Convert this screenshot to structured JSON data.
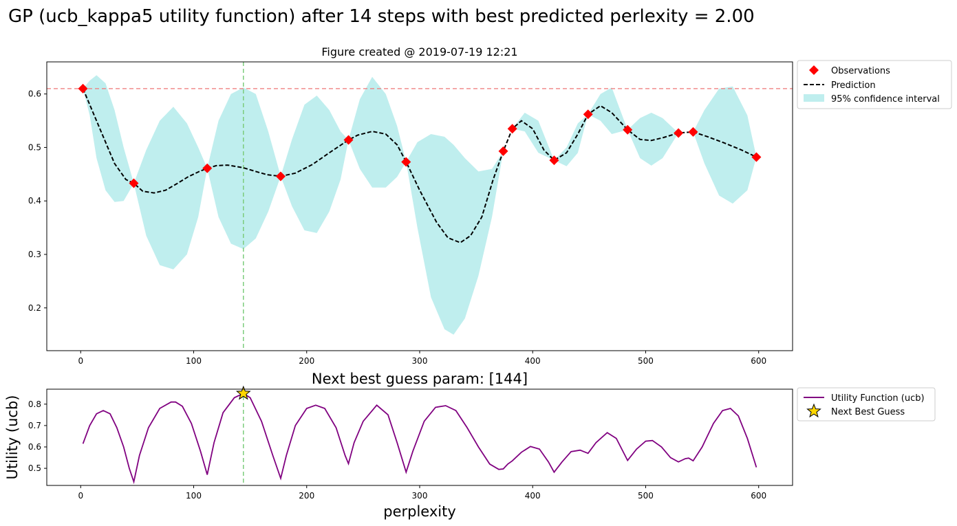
{
  "figure": {
    "suptitle": "GP (ucb_kappa5 utility function) after 14 steps with best predicted perlexity = 2.00"
  },
  "chart_data": [
    {
      "type": "line",
      "title": "Figure created @ 2019-07-19 12:21",
      "xlabel": "",
      "ylabel": "",
      "xlim": [
        -30,
        630
      ],
      "ylim": [
        0.12,
        0.66
      ],
      "xticks": [
        0,
        100,
        200,
        300,
        400,
        500,
        600
      ],
      "yticks": [
        0.2,
        0.3,
        0.4,
        0.5,
        0.6
      ],
      "grid": false,
      "legend_position": "outside-top-right",
      "best_value_line": 0.61,
      "next_guess_x": 144,
      "observations": {
        "name": "Observations",
        "marker": "diamond",
        "color": "#ff0000",
        "x": [
          2,
          47,
          112,
          177,
          237,
          288,
          374,
          382,
          419,
          449,
          484,
          529,
          542,
          598
        ],
        "y": [
          0.61,
          0.433,
          0.461,
          0.446,
          0.514,
          0.473,
          0.493,
          0.535,
          0.476,
          0.562,
          0.533,
          0.527,
          0.529,
          0.482
        ]
      },
      "prediction": {
        "name": "Prediction",
        "color": "#000000",
        "style": "dashed",
        "x": [
          2,
          10,
          20,
          30,
          40,
          47,
          55,
          65,
          75,
          85,
          95,
          105,
          112,
          120,
          130,
          144,
          155,
          165,
          177,
          190,
          205,
          220,
          237,
          245,
          258,
          270,
          280,
          288,
          300,
          315,
          325,
          336,
          345,
          355,
          365,
          374,
          382,
          390,
          400,
          410,
          419,
          430,
          440,
          449,
          460,
          470,
          484,
          495,
          505,
          515,
          529,
          542,
          555,
          570,
          585,
          598
        ],
        "y": [
          0.61,
          0.57,
          0.52,
          0.47,
          0.44,
          0.433,
          0.418,
          0.415,
          0.42,
          0.432,
          0.445,
          0.455,
          0.461,
          0.466,
          0.467,
          0.462,
          0.455,
          0.449,
          0.446,
          0.452,
          0.468,
          0.49,
          0.514,
          0.523,
          0.53,
          0.525,
          0.505,
          0.473,
          0.42,
          0.36,
          0.331,
          0.322,
          0.335,
          0.37,
          0.44,
          0.493,
          0.535,
          0.55,
          0.535,
          0.495,
          0.476,
          0.49,
          0.525,
          0.562,
          0.578,
          0.565,
          0.533,
          0.515,
          0.513,
          0.518,
          0.527,
          0.529,
          0.52,
          0.508,
          0.495,
          0.482
        ]
      },
      "confidence_interval": {
        "name": "95% confidence interval",
        "color": "#bfeeee",
        "x": [
          2,
          8,
          14,
          22,
          30,
          38,
          47,
          58,
          70,
          82,
          94,
          104,
          112,
          122,
          133,
          144,
          155,
          166,
          177,
          187,
          198,
          209,
          220,
          230,
          237,
          247,
          258,
          270,
          280,
          288,
          298,
          310,
          322,
          330,
          340,
          352,
          364,
          374,
          382,
          393,
          405,
          419,
          430,
          440,
          449,
          460,
          470,
          484,
          495,
          505,
          515,
          529,
          542,
          552,
          565,
          577,
          590,
          598
        ],
        "upper": [
          0.61,
          0.625,
          0.635,
          0.62,
          0.57,
          0.5,
          0.433,
          0.495,
          0.55,
          0.576,
          0.545,
          0.5,
          0.461,
          0.55,
          0.6,
          0.612,
          0.6,
          0.53,
          0.446,
          0.515,
          0.58,
          0.597,
          0.57,
          0.53,
          0.514,
          0.59,
          0.632,
          0.6,
          0.54,
          0.473,
          0.51,
          0.525,
          0.52,
          0.505,
          0.48,
          0.455,
          0.46,
          0.493,
          0.535,
          0.565,
          0.55,
          0.476,
          0.5,
          0.545,
          0.562,
          0.6,
          0.612,
          0.533,
          0.555,
          0.565,
          0.555,
          0.527,
          0.529,
          0.57,
          0.61,
          0.614,
          0.56,
          0.482
        ],
        "lower": [
          0.61,
          0.56,
          0.48,
          0.42,
          0.398,
          0.4,
          0.433,
          0.335,
          0.28,
          0.272,
          0.3,
          0.37,
          0.461,
          0.37,
          0.32,
          0.31,
          0.33,
          0.38,
          0.446,
          0.39,
          0.345,
          0.34,
          0.38,
          0.44,
          0.514,
          0.46,
          0.425,
          0.425,
          0.445,
          0.473,
          0.35,
          0.22,
          0.16,
          0.15,
          0.18,
          0.26,
          0.37,
          0.493,
          0.535,
          0.53,
          0.49,
          0.476,
          0.465,
          0.49,
          0.562,
          0.55,
          0.525,
          0.533,
          0.48,
          0.466,
          0.48,
          0.527,
          0.529,
          0.47,
          0.41,
          0.395,
          0.42,
          0.482
        ]
      }
    },
    {
      "type": "line",
      "title": "Next best guess param: [144]",
      "xlabel": "perplexity",
      "ylabel": "Utility (ucb)",
      "xlim": [
        -30,
        630
      ],
      "ylim": [
        0.42,
        0.87
      ],
      "xticks": [
        0,
        100,
        200,
        300,
        400,
        500,
        600
      ],
      "yticks": [
        0.5,
        0.6,
        0.7,
        0.8
      ],
      "grid": false,
      "legend_position": "outside-top-right",
      "next_guess_x": 144,
      "utility": {
        "name": "Utility Function (ucb)",
        "color": "#800080",
        "x": [
          2,
          8,
          14,
          20,
          26,
          32,
          38,
          43,
          47,
          52,
          60,
          70,
          80,
          84,
          90,
          98,
          106,
          112,
          118,
          126,
          136,
          144,
          150,
          160,
          170,
          177,
          182,
          190,
          200,
          208,
          216,
          226,
          234,
          237,
          242,
          250,
          262,
          272,
          280,
          288,
          294,
          304,
          314,
          323,
          332,
          342,
          352,
          362,
          370,
          374,
          378,
          382,
          390,
          398,
          406,
          414,
          419,
          426,
          434,
          442,
          449,
          456,
          466,
          474,
          484,
          492,
          500,
          506,
          514,
          522,
          529,
          535,
          538,
          542,
          550,
          560,
          568,
          575,
          582,
          590,
          598
        ],
        "y": [
          0.615,
          0.7,
          0.755,
          0.77,
          0.755,
          0.69,
          0.6,
          0.5,
          0.437,
          0.56,
          0.69,
          0.78,
          0.81,
          0.81,
          0.79,
          0.71,
          0.58,
          0.47,
          0.62,
          0.76,
          0.83,
          0.85,
          0.83,
          0.72,
          0.56,
          0.453,
          0.56,
          0.7,
          0.78,
          0.795,
          0.78,
          0.69,
          0.56,
          0.522,
          0.62,
          0.72,
          0.795,
          0.75,
          0.62,
          0.482,
          0.58,
          0.72,
          0.785,
          0.793,
          0.77,
          0.69,
          0.6,
          0.52,
          0.495,
          0.497,
          0.52,
          0.535,
          0.575,
          0.602,
          0.59,
          0.53,
          0.482,
          0.53,
          0.578,
          0.585,
          0.57,
          0.62,
          0.667,
          0.64,
          0.537,
          0.59,
          0.627,
          0.63,
          0.6,
          0.55,
          0.53,
          0.545,
          0.548,
          0.535,
          0.6,
          0.71,
          0.77,
          0.78,
          0.745,
          0.64,
          0.505
        ]
      },
      "next_best_guess": {
        "name": "Next Best Guess",
        "marker": "star",
        "color": "#ffd700",
        "x": 144,
        "y": 0.85
      }
    }
  ]
}
